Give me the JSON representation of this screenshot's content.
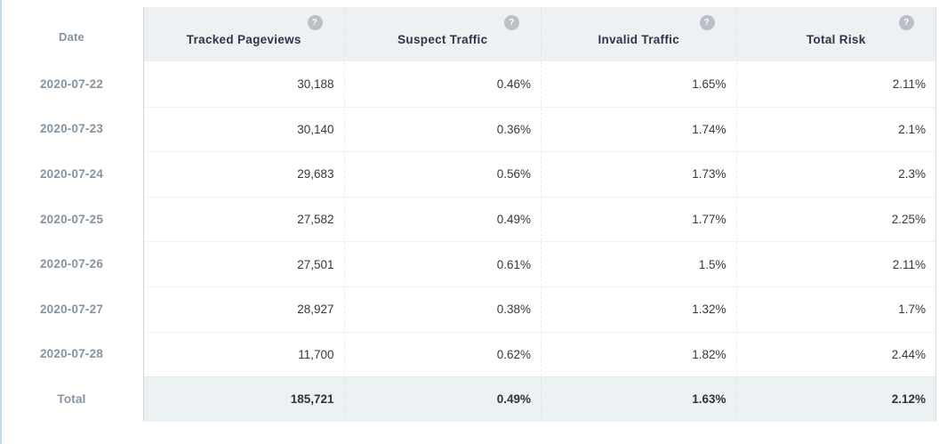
{
  "table": {
    "date_header": "Date",
    "help_glyph": "?",
    "columns": [
      {
        "label": "Tracked Pageviews"
      },
      {
        "label": "Suspect Traffic"
      },
      {
        "label": "Invalid Traffic"
      },
      {
        "label": "Total Risk"
      }
    ],
    "rows": [
      {
        "date": "2020-07-22",
        "tracked_pageviews": "30,188",
        "suspect_traffic": "0.46%",
        "invalid_traffic": "1.65%",
        "total_risk": "2.11%"
      },
      {
        "date": "2020-07-23",
        "tracked_pageviews": "30,140",
        "suspect_traffic": "0.36%",
        "invalid_traffic": "1.74%",
        "total_risk": "2.1%"
      },
      {
        "date": "2020-07-24",
        "tracked_pageviews": "29,683",
        "suspect_traffic": "0.56%",
        "invalid_traffic": "1.73%",
        "total_risk": "2.3%"
      },
      {
        "date": "2020-07-25",
        "tracked_pageviews": "27,582",
        "suspect_traffic": "0.49%",
        "invalid_traffic": "1.77%",
        "total_risk": "2.25%"
      },
      {
        "date": "2020-07-26",
        "tracked_pageviews": "27,501",
        "suspect_traffic": "0.61%",
        "invalid_traffic": "1.5%",
        "total_risk": "2.11%"
      },
      {
        "date": "2020-07-27",
        "tracked_pageviews": "28,927",
        "suspect_traffic": "0.38%",
        "invalid_traffic": "1.32%",
        "total_risk": "1.7%"
      },
      {
        "date": "2020-07-28",
        "tracked_pageviews": "11,700",
        "suspect_traffic": "0.62%",
        "invalid_traffic": "1.82%",
        "total_risk": "2.44%"
      }
    ],
    "total_row": {
      "label": "Total",
      "tracked_pageviews": "185,721",
      "suspect_traffic": "0.49%",
      "invalid_traffic": "1.63%",
      "total_risk": "2.12%"
    }
  },
  "colors": {
    "header_bg": "#eef1f4",
    "total_row_bg": "#ecf2f4",
    "header_text": "#2e3547",
    "muted_text": "#8494a1",
    "value_text": "#35393e",
    "help_icon_bg": "#b9c0c7",
    "left_accent": "#bcd9ef"
  }
}
